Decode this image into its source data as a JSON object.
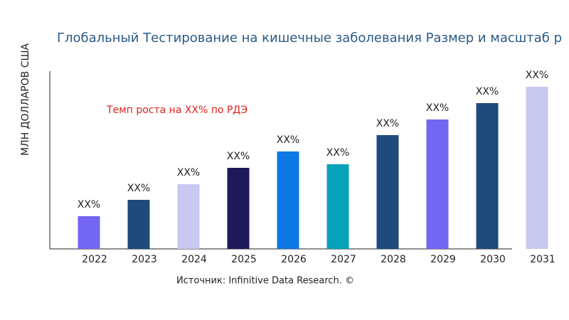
{
  "chart_data": {
    "type": "bar",
    "title": "Глобальный Тестирование на кишечные заболевания Размер и масштаб р",
    "y_label": "МЛН ДОЛЛАРОВ США",
    "annotation": "Темп роста на XX% по РДЭ",
    "source": "Источник: Infinitive Data Research. ©",
    "categories": [
      "2022",
      "2023",
      "2024",
      "2025",
      "2026",
      "2027",
      "2028",
      "2029",
      "2030",
      "2031"
    ],
    "values": [
      46,
      69,
      91,
      114,
      137,
      119,
      160,
      182,
      205,
      228
    ],
    "value_labels": [
      "XX%",
      "XX%",
      "XX%",
      "XX%",
      "XX%",
      "XX%",
      "XX%",
      "XX%",
      "XX%",
      "XX%"
    ],
    "colors": [
      "#7366f0",
      "#1f4a7c",
      "#c8c8f0",
      "#1e1a5a",
      "#0d78e3",
      "#06a2b8",
      "#1f4a7c",
      "#7366f0",
      "#1f4a7c",
      "#c8c8f0"
    ],
    "ylim": [
      0,
      250
    ]
  }
}
